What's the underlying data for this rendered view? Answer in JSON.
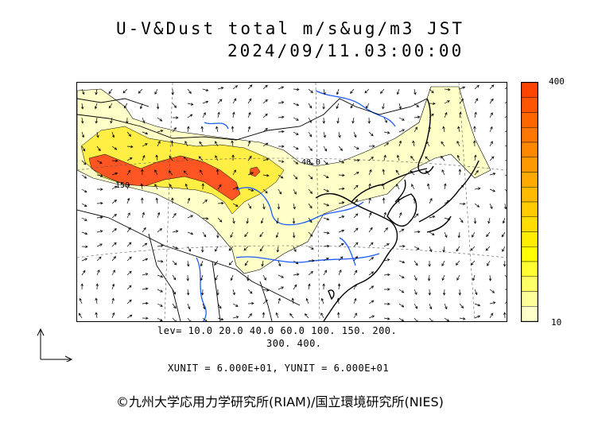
{
  "title": {
    "line1": "U-V&Dust total m/s&ug/m3 JST",
    "line2": "2024/09/11.03:00:00"
  },
  "colorbar": {
    "max_label": "400",
    "min_label": "10",
    "colors": [
      "#ffffcc",
      "#ffff99",
      "#ffff66",
      "#ffff33",
      "#ffff00",
      "#ffee00",
      "#ffdd00",
      "#ffcc00",
      "#ffbb00",
      "#ffaa00",
      "#ff9900",
      "#ff8800",
      "#ff7700",
      "#ff6600",
      "#ff5500",
      "#ff4400"
    ]
  },
  "contour_levels": {
    "line1": "lev= 10.0 20.0 40.0 60.0 100. 150. 200.",
    "line2": "300. 400."
  },
  "map_labels": {
    "label_150": "150",
    "label_40": "40.0"
  },
  "units": "XUNIT = 6.000E+01, YUNIT = 6.000E+01",
  "copyright": "©九州大学応用力学研究所(RIAM)/国立環境研究所(NIES)",
  "colors": {
    "land_outline": "#000000",
    "rivers": "#1a5cff",
    "dust_low": "#ffffcc",
    "dust_mid": "#ffee33",
    "dust_high": "#ff5522"
  }
}
